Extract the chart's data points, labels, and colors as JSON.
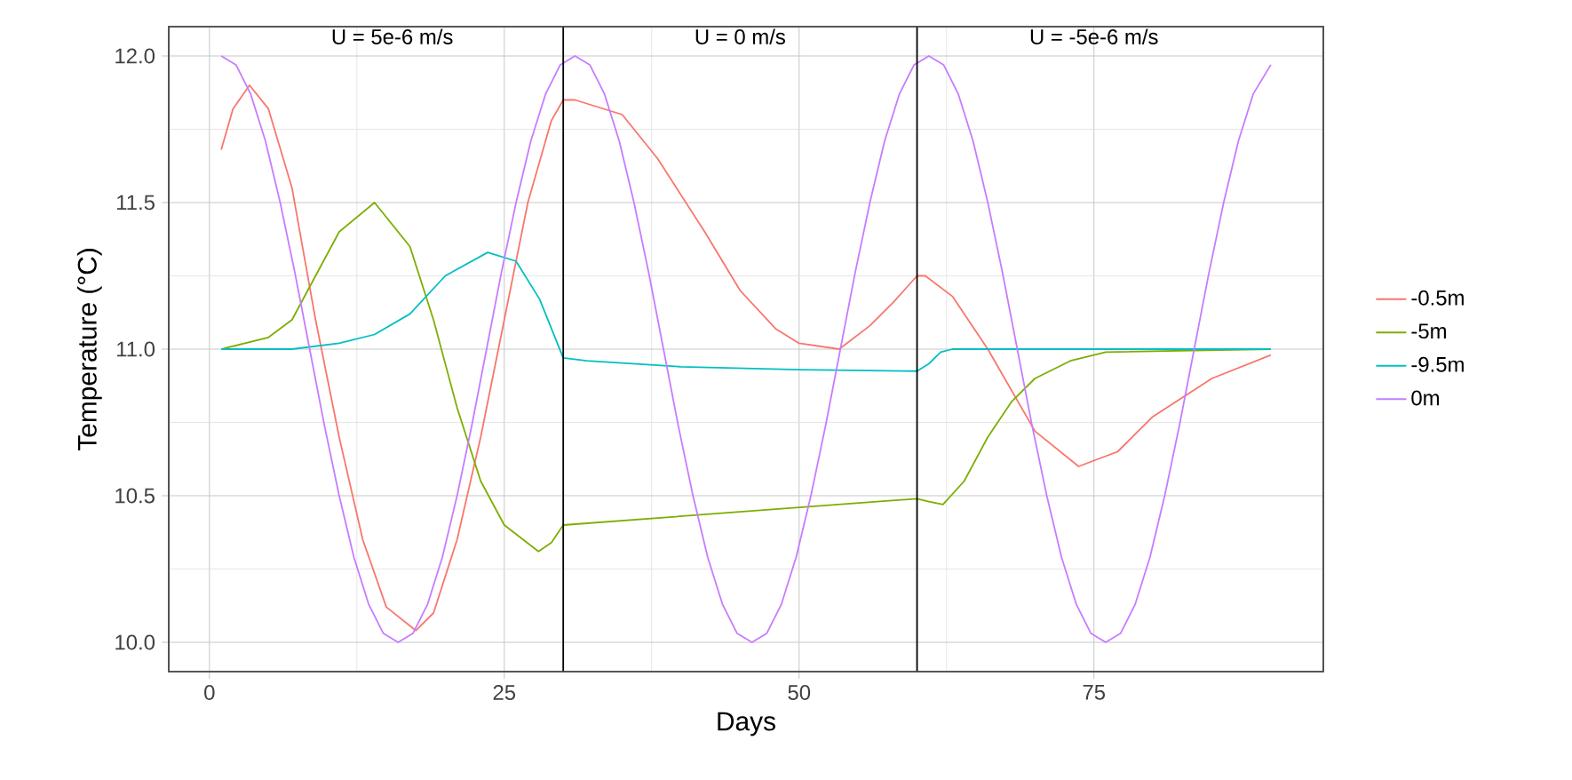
{
  "chart_data": {
    "type": "line",
    "xlabel": "Days",
    "ylabel": "Temperature (°C)",
    "xlim": [
      -3.45,
      94.45
    ],
    "ylim": [
      9.9,
      12.1
    ],
    "xticks": [
      0,
      25,
      50,
      75
    ],
    "yticks": [
      {
        "value": 10,
        "label": "10.0"
      },
      {
        "value": 10.5,
        "label": "10.5"
      },
      {
        "value": 11,
        "label": "11.0"
      },
      {
        "value": 11.5,
        "label": "11.5"
      },
      {
        "value": 12,
        "label": "12.0"
      }
    ],
    "grid": true,
    "legend": "right",
    "line_style": "solid",
    "ref_lines": [
      {
        "axis": "x",
        "value": 30,
        "color": "#000000"
      },
      {
        "axis": "x",
        "value": 60,
        "color": "#000000"
      }
    ],
    "annotations": [
      "U = 5e-6 m/s",
      "U = 0 m/s",
      "U = -5e-6 m/s"
    ],
    "series": [
      {
        "name": "-0.5m",
        "color": "#f8766d",
        "x": [
          1,
          2,
          3.4,
          5,
          7,
          9,
          11,
          13,
          15,
          17.5,
          19,
          21,
          23,
          25,
          27,
          29,
          30,
          31,
          35,
          38,
          42,
          45,
          48,
          50,
          53.4,
          56,
          58,
          60,
          60.7,
          63,
          66,
          70,
          73.7,
          77,
          80,
          85,
          90
        ],
        "values": [
          11.68,
          11.82,
          11.9,
          11.82,
          11.55,
          11.1,
          10.7,
          10.35,
          10.12,
          10.04,
          10.1,
          10.35,
          10.7,
          11.1,
          11.5,
          11.78,
          11.85,
          11.85,
          11.8,
          11.65,
          11.4,
          11.2,
          11.07,
          11.02,
          11.0,
          11.08,
          11.16,
          11.25,
          11.25,
          11.18,
          11.0,
          10.72,
          10.6,
          10.65,
          10.77,
          10.9,
          10.98
        ]
      },
      {
        "name": "-5m",
        "color": "#7cae00",
        "x": [
          1,
          3,
          5,
          7,
          9,
          11,
          14,
          17,
          19,
          21,
          23,
          25,
          27.9,
          29,
          30,
          60,
          61,
          62.2,
          64,
          66,
          68,
          70,
          73,
          76,
          80,
          90
        ],
        "values": [
          11.0,
          11.02,
          11.04,
          11.1,
          11.25,
          11.4,
          11.5,
          11.35,
          11.1,
          10.8,
          10.55,
          10.4,
          10.31,
          10.34,
          10.4,
          10.49,
          10.48,
          10.47,
          10.55,
          10.7,
          10.82,
          10.9,
          10.96,
          10.99,
          null,
          11.0
        ]
      },
      {
        "name": "-9.5m",
        "color": "#00bfc4",
        "x": [
          1,
          7,
          11,
          14,
          17,
          20,
          23.6,
          26,
          28,
          30,
          32,
          40,
          50,
          60,
          61,
          62,
          63,
          90
        ],
        "values": [
          11.0,
          11.0,
          11.02,
          11.05,
          11.12,
          11.25,
          11.33,
          11.3,
          11.17,
          10.97,
          10.96,
          10.94,
          10.93,
          10.925,
          10.95,
          10.99,
          11.0,
          11.0
        ]
      },
      {
        "name": "0m",
        "color": "#c77cff",
        "x": [
          1,
          2.25,
          3.5,
          4.75,
          6,
          7.25,
          8.5,
          9.75,
          11,
          12.25,
          13.5,
          14.75,
          16,
          17.25,
          18.5,
          19.75,
          21,
          22.25,
          23.5,
          24.75,
          26,
          27.25,
          28.5,
          29.75,
          31,
          32.25,
          33.5,
          34.75,
          36,
          37.25,
          38.5,
          39.75,
          41,
          42.25,
          43.5,
          44.75,
          46,
          47.25,
          48.5,
          49.75,
          51,
          52.25,
          53.5,
          54.75,
          56,
          57.25,
          58.5,
          59.75,
          61,
          62.25,
          63.5,
          64.75,
          66,
          67.25,
          68.5,
          69.75,
          71,
          72.25,
          73.5,
          74.75,
          76,
          77.25,
          78.5,
          79.75,
          81,
          82.25,
          83.5,
          84.75,
          86,
          87.25,
          88.5,
          90
        ],
        "values": [
          12.0,
          11.97,
          11.87,
          11.71,
          11.5,
          11.26,
          11.0,
          10.74,
          10.5,
          10.29,
          10.13,
          10.03,
          10.0,
          10.03,
          10.13,
          10.29,
          10.5,
          10.74,
          11.0,
          11.26,
          11.5,
          11.71,
          11.87,
          11.97,
          12.0,
          11.97,
          11.87,
          11.71,
          11.5,
          11.26,
          11.0,
          10.74,
          10.5,
          10.29,
          10.13,
          10.03,
          10.0,
          10.03,
          10.13,
          10.29,
          10.5,
          10.74,
          11.0,
          11.26,
          11.5,
          11.71,
          11.87,
          11.97,
          12.0,
          11.97,
          11.87,
          11.71,
          11.5,
          11.26,
          11.0,
          10.74,
          10.5,
          10.29,
          10.13,
          10.03,
          10.0,
          10.03,
          10.13,
          10.29,
          10.5,
          10.74,
          11.0,
          11.26,
          11.5,
          11.71,
          11.87,
          11.97
        ]
      }
    ]
  }
}
